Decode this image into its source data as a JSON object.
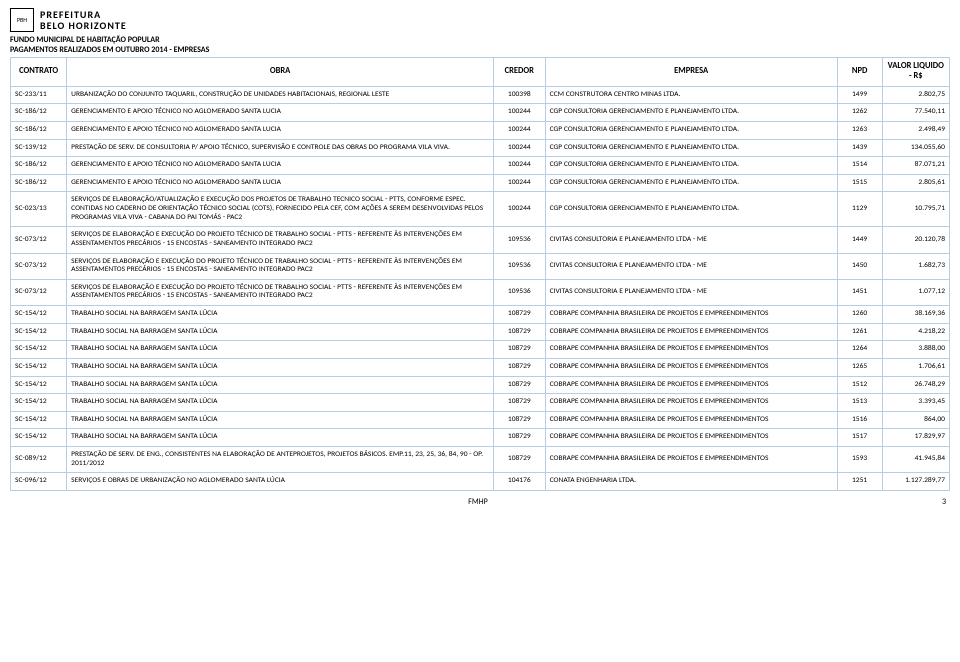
{
  "logo": {
    "line1": "PREFEITURA",
    "line2": "BELO HORIZONTE"
  },
  "title": {
    "line1": "FUNDO MUNICIPAL DE HABITAÇÃO POPULAR",
    "line2": "PAGAMENTOS REALIZADOS EM OUTUBRO 2014 - EMPRESAS"
  },
  "table": {
    "headers": {
      "contrato": "CONTRATO",
      "obra": "OBRA",
      "credor": "CREDOR",
      "empresa": "EMPRESA",
      "npd": "NPD",
      "valor": "VALOR LIQUIDO - R$"
    },
    "border_color": "#b7cde4",
    "rows": [
      {
        "contrato": "SC-233/11",
        "obra": "URBANIZAÇÃO DO CONJUNTO TAQUARIL, CONSTRUÇÃO DE UNIDADES HABITACIONAIS, REGIONAL LESTE",
        "credor": "100398",
        "empresa": "CCM CONSTRUTORA CENTRO MINAS LTDA.",
        "npd": "1499",
        "valor": "2.802,75"
      },
      {
        "contrato": "SC-186/12",
        "obra": "GERENCIAMENTO E APOIO TÉCNICO NO AGLOMERADO SANTA LUCIA",
        "credor": "100244",
        "empresa": "CGP CONSULTORIA GERENCIAMENTO E PLANEJAMENTO LTDA.",
        "npd": "1262",
        "valor": "77.540,11"
      },
      {
        "contrato": "SC-186/12",
        "obra": "GERENCIAMENTO E APOIO TÉCNICO NO AGLOMERADO SANTA LUCIA",
        "credor": "100244",
        "empresa": "CGP CONSULTORIA GERENCIAMENTO E PLANEJAMENTO LTDA.",
        "npd": "1263",
        "valor": "2.498,49"
      },
      {
        "contrato": "SC-139/12",
        "obra": "PRESTAÇÃO DE SERV. DE CONSULTORIA P/ APOIO TÉCNICO, SUPERVISÃO E CONTROLE DAS OBRAS DO PROGRAMA VILA VIVA.",
        "credor": "100244",
        "empresa": "CGP CONSULTORIA GERENCIAMENTO E PLANEJAMENTO LTDA.",
        "npd": "1439",
        "valor": "134.055,60"
      },
      {
        "contrato": "SC-186/12",
        "obra": "GERENCIAMENTO E APOIO TÉCNICO NO AGLOMERADO SANTA LUCIA",
        "credor": "100244",
        "empresa": "CGP CONSULTORIA GERENCIAMENTO E PLANEJAMENTO LTDA.",
        "npd": "1514",
        "valor": "87.071,21"
      },
      {
        "contrato": "SC-186/12",
        "obra": "GERENCIAMENTO E APOIO TÉCNICO NO AGLOMERADO SANTA LUCIA",
        "credor": "100244",
        "empresa": "CGP CONSULTORIA GERENCIAMENTO E PLANEJAMENTO LTDA.",
        "npd": "1515",
        "valor": "2.805,61"
      },
      {
        "contrato": "SC-023/13",
        "obra": "SERVIÇOS DE ELABORAÇÃO/ATUALIZAÇÃO E EXECUÇÃO DOS PROJETOS DE TRABALHO TECNICO SOCIAL - PTTS, CONFORME ESPEC. CONTIDAS NO CADERNO DE ORIENTAÇÃO TÉCNICO SOCIAL (COTS), FORNECIDO PELA CEF, COM AÇÕES A SEREM DESENVOLVIDAS PELOS PROGRAMAS VILA VIVA - CABANA DO PAI TOMÁS - PAC2",
        "credor": "100244",
        "empresa": "CGP CONSULTORIA GERENCIAMENTO E PLANEJAMENTO LTDA.",
        "npd": "1129",
        "valor": "10.795,71"
      },
      {
        "contrato": "SC-073/12",
        "obra": "SERVIÇOS DE ELABORAÇÃO E EXECUÇÃO DO PROJETO TÉCNICO DE TRABALHO SOCIAL - PTTS - REFERENTE ÀS INTERVENÇÕES EM ASSENTAMENTOS PRECÁRIOS - 15 ENCOSTAS - SANEAMENTO INTEGRADO PAC2",
        "credor": "109536",
        "empresa": "CIVITAS CONSULTORIA E PLANEJAMENTO LTDA - ME",
        "npd": "1449",
        "valor": "20.120,78"
      },
      {
        "contrato": "SC-073/12",
        "obra": "SERVIÇOS DE ELABORAÇÃO E EXECUÇÃO DO PROJETO TÉCNICO DE TRABALHO SOCIAL - PTTS - REFERENTE ÀS INTERVENÇÕES EM ASSENTAMENTOS PRECÁRIOS - 15 ENCOSTAS - SANEAMENTO INTEGRADO PAC2",
        "credor": "109536",
        "empresa": "CIVITAS CONSULTORIA E PLANEJAMENTO LTDA - ME",
        "npd": "1450",
        "valor": "1.682,73"
      },
      {
        "contrato": "SC-073/12",
        "obra": "SERVIÇOS DE ELABORAÇÃO E EXECUÇÃO DO PROJETO TÉCNICO DE TRABALHO SOCIAL - PTTS - REFERENTE ÀS INTERVENÇÕES EM ASSENTAMENTOS PRECÁRIOS - 15 ENCOSTAS - SANEAMENTO INTEGRADO PAC2",
        "credor": "109536",
        "empresa": "CIVITAS CONSULTORIA E PLANEJAMENTO LTDA - ME",
        "npd": "1451",
        "valor": "1.077,12"
      },
      {
        "contrato": "SC-154/12",
        "obra": "TRABALHO SOCIAL NA BARRAGEM SANTA LÚCIA",
        "credor": "108729",
        "empresa": "COBRAPE COMPANHIA BRASILEIRA DE PROJETOS E EMPREENDIMENTOS",
        "npd": "1260",
        "valor": "38.169,36"
      },
      {
        "contrato": "SC-154/12",
        "obra": "TRABALHO SOCIAL NA BARRAGEM SANTA LÚCIA",
        "credor": "108729",
        "empresa": "COBRAPE COMPANHIA BRASILEIRA DE PROJETOS E EMPREENDIMENTOS",
        "npd": "1261",
        "valor": "4.218,22"
      },
      {
        "contrato": "SC-154/12",
        "obra": "TRABALHO SOCIAL NA BARRAGEM SANTA LÚCIA",
        "credor": "108729",
        "empresa": "COBRAPE COMPANHIA BRASILEIRA DE PROJETOS E EMPREENDIMENTOS",
        "npd": "1264",
        "valor": "3.888,00"
      },
      {
        "contrato": "SC-154/12",
        "obra": "TRABALHO SOCIAL NA BARRAGEM SANTA LÚCIA",
        "credor": "108729",
        "empresa": "COBRAPE COMPANHIA BRASILEIRA DE PROJETOS E EMPREENDIMENTOS",
        "npd": "1265",
        "valor": "1.706,61"
      },
      {
        "contrato": "SC-154/12",
        "obra": "TRABALHO SOCIAL NA BARRAGEM SANTA LÚCIA",
        "credor": "108729",
        "empresa": "COBRAPE COMPANHIA BRASILEIRA DE PROJETOS E EMPREENDIMENTOS",
        "npd": "1512",
        "valor": "26.748,29"
      },
      {
        "contrato": "SC-154/12",
        "obra": "TRABALHO SOCIAL NA BARRAGEM SANTA LÚCIA",
        "credor": "108729",
        "empresa": "COBRAPE COMPANHIA BRASILEIRA DE PROJETOS E EMPREENDIMENTOS",
        "npd": "1513",
        "valor": "3.393,45"
      },
      {
        "contrato": "SC-154/12",
        "obra": "TRABALHO SOCIAL NA BARRAGEM SANTA LÚCIA",
        "credor": "108729",
        "empresa": "COBRAPE COMPANHIA BRASILEIRA DE PROJETOS E EMPREENDIMENTOS",
        "npd": "1516",
        "valor": "864,00"
      },
      {
        "contrato": "SC-154/12",
        "obra": "TRABALHO SOCIAL NA BARRAGEM SANTA LÚCIA",
        "credor": "108729",
        "empresa": "COBRAPE COMPANHIA BRASILEIRA DE PROJETOS E EMPREENDIMENTOS",
        "npd": "1517",
        "valor": "17.829,97"
      },
      {
        "contrato": "SC-089/12",
        "obra": "PRESTAÇÃO DE SERV. DE ENG., CONSISTENTES NA ELABORAÇÃO DE ANTEPROJETOS, PROJETOS BÁSICOS. EMP.11, 23, 25, 36, 84, 90 - OP. 2011/2012",
        "credor": "108729",
        "empresa": "COBRAPE COMPANHIA BRASILEIRA DE PROJETOS E EMPREENDIMENTOS",
        "npd": "1593",
        "valor": "41.945,84"
      },
      {
        "contrato": "SC-096/12",
        "obra": "SERVIÇOS E OBRAS DE URBANIZAÇÃO NO AGLOMERADO SANTA LÚCIA",
        "credor": "104176",
        "empresa": "CONATA ENGENHARIA LTDA.",
        "npd": "1251",
        "valor": "1.127.289,77"
      }
    ]
  },
  "footer": {
    "center": "FMHP",
    "page": "3"
  }
}
